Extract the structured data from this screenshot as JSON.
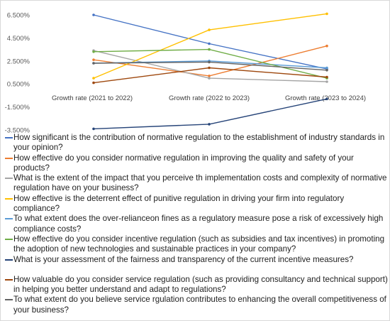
{
  "chart_data": {
    "type": "line",
    "title": "",
    "xlabel": "",
    "ylabel": "",
    "categories": [
      "Growth rate (2021 to 2022)",
      "Growth rate (2022 to 2023)",
      "Growth rate (2023 to 2024)"
    ],
    "y_ticks": [
      "6.500%",
      "4.500%",
      "2.500%",
      "0.500%",
      "-1.500%",
      "-3.500%"
    ],
    "ylim": [
      -3.5,
      6.5
    ],
    "grid": false,
    "legend_position": "bottom",
    "series": [
      {
        "name": "How significant is the contribution of normative regulation to the establishment of industry standards in your opinion?",
        "color": "#4472c4",
        "values": [
          6.5,
          4.0,
          1.8
        ]
      },
      {
        "name": "How effective do you consider normative regulation in improving the quality and safety of your products?",
        "color": "#ed7d31",
        "values": [
          2.6,
          1.2,
          3.8
        ]
      },
      {
        "name": "What is the extent of the impact that you perceive th implementation costs and complexity of normative regulation have on your business?",
        "color": "#a5a5a5",
        "values": [
          3.4,
          1.0,
          0.7
        ]
      },
      {
        "name": "How effective is the deterrent effect of  punitive regulation in driving your firm into regulatory compliance?",
        "color": "#ffc000",
        "values": [
          1.0,
          5.2,
          6.6
        ]
      },
      {
        "name": "To what extent does the over-relianceon fines as a regulatory measure pose a risk of excessively high compliance costs?",
        "color": "#5b9bd5",
        "values": [
          2.3,
          2.5,
          1.9
        ]
      },
      {
        "name": "How effective do you consider incentive regulation (such as subsidies and tax incentives) in promoting the adoption of new technologies and sustainable practices in your company?",
        "color": "#70ad47",
        "values": [
          3.3,
          3.5,
          1.0
        ]
      },
      {
        "name": "What is your assessment of the fairness and transparency of the current incentive measures?",
        "color": "#264478",
        "values": [
          -3.4,
          -3.0,
          -0.8
        ]
      },
      {
        "name": "How valuable do you consider service regulation (such as providing consultancy and technical support) in helping you better understand and adapt to regulations?",
        "color": "#9e480e",
        "values": [
          0.6,
          1.9,
          1.1
        ]
      },
      {
        "name": "To what extent do you believe service rgulation contributes to enhancing the overall competitiveness of your business?",
        "color": "#636363",
        "values": [
          2.3,
          2.4,
          1.7
        ]
      }
    ]
  }
}
